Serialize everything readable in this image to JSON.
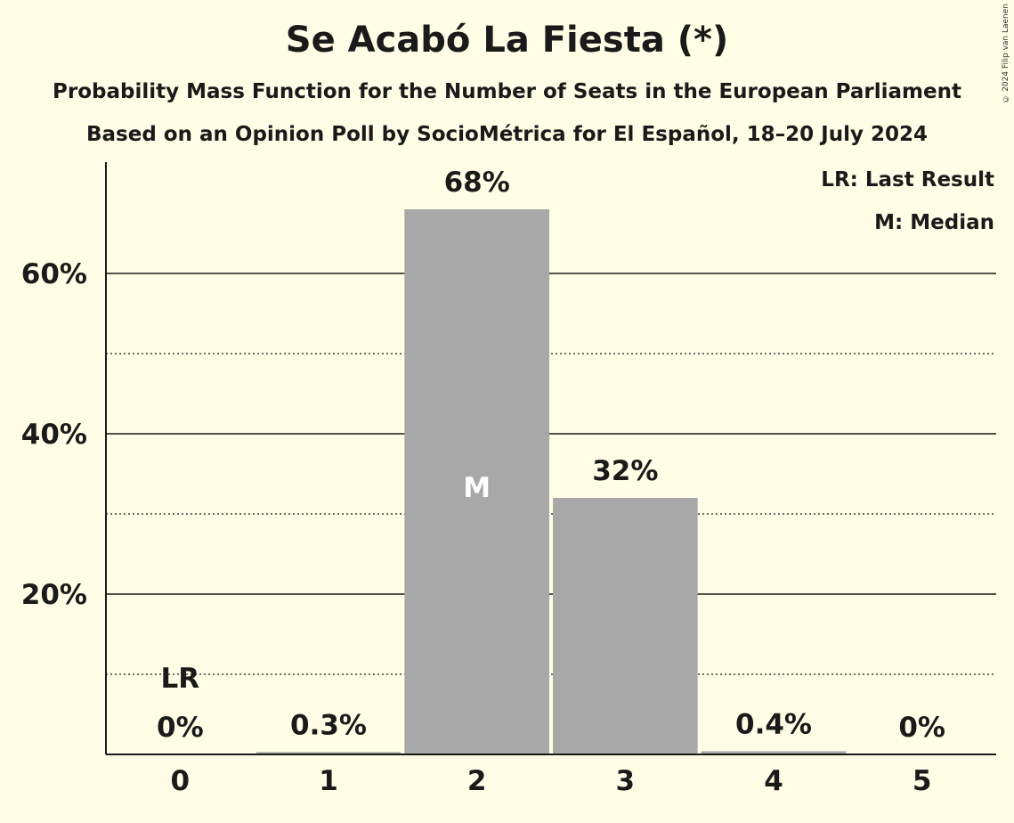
{
  "chart_data": {
    "type": "bar",
    "title": "Se Acabó La Fiesta (*)",
    "subtitle": "Probability Mass Function for the Number of Seats in the European Parliament",
    "subtitle2": "Based on an Opinion Poll by SocioMétrica for El Español, 18–20 July 2024",
    "categories": [
      "0",
      "1",
      "2",
      "3",
      "4",
      "5"
    ],
    "values": [
      0,
      0.3,
      68,
      32,
      0.4,
      0
    ],
    "value_labels": [
      "0%",
      "0.3%",
      "68%",
      "32%",
      "0.4%",
      "0%"
    ],
    "ylim": [
      0,
      74
    ],
    "y_ticks": [
      {
        "value": 20,
        "label": "20%"
      },
      {
        "value": 40,
        "label": "40%"
      },
      {
        "value": 60,
        "label": "60%"
      }
    ],
    "minor_gridlines": [
      10,
      30,
      50
    ],
    "last_result_category": "0",
    "last_result_marker": "LR",
    "median_category": "2",
    "median_marker": "M",
    "legend": [
      "LR: Last Result",
      "M: Median"
    ],
    "legend_position": "top-right",
    "bar_color": "#a8a8a8",
    "background_color": "#fffde5",
    "copyright": "© 2024 Filip van Laenen"
  }
}
